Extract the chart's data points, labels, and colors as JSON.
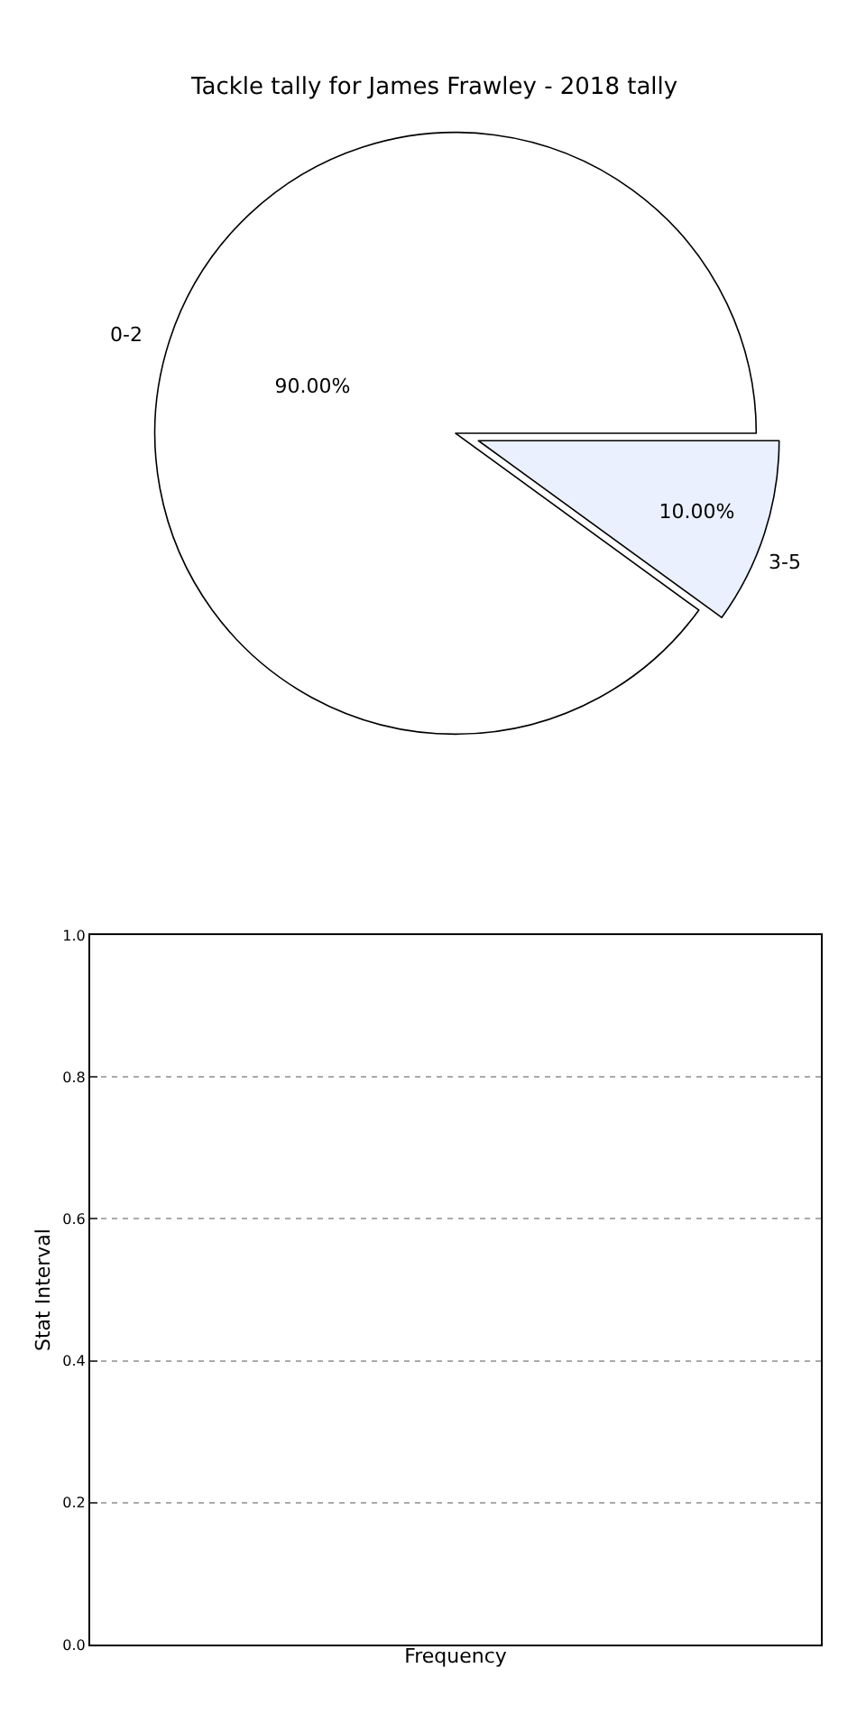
{
  "chart_data": [
    {
      "type": "pie",
      "title": "Tackle tally for James Frawley - 2018 tally",
      "categories": [
        "0-2",
        "3-5"
      ],
      "values": [
        90,
        10
      ],
      "colors": [
        "#ffffff",
        "#eaf0fd"
      ],
      "value_labels": [
        "90.00%",
        "10.00%"
      ]
    },
    {
      "type": "bar",
      "xlabel": "Frequency",
      "ylabel": "Stat Interval",
      "categories": [
        null
      ],
      "values": [
        null
      ],
      "ylim": [
        0,
        1
      ],
      "yticks": [
        {
          "value": 0,
          "label": "0.0"
        },
        {
          "value": 0.2,
          "label": "0.2"
        },
        {
          "value": 0.4,
          "label": "0.4"
        },
        {
          "value": 0.6,
          "label": "0.6"
        },
        {
          "value": 0.8,
          "label": "0.8"
        },
        {
          "value": 1,
          "label": "1.0"
        }
      ],
      "grid": "y",
      "tick_labels": "y"
    }
  ]
}
